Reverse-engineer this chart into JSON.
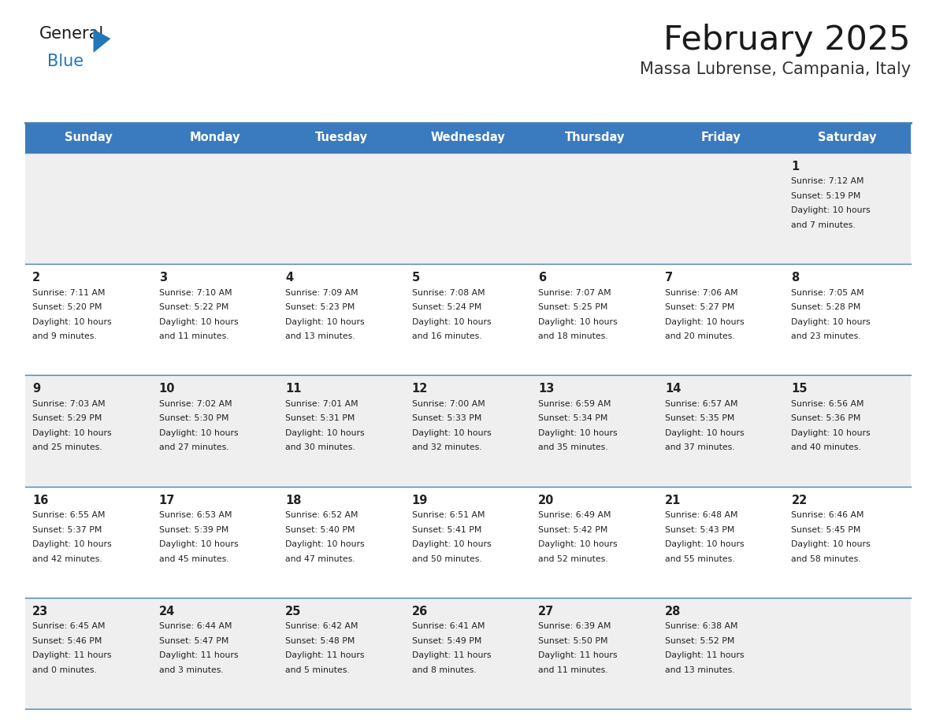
{
  "title": "February 2025",
  "subtitle": "Massa Lubrense, Campania, Italy",
  "header_bg": "#3a7abf",
  "header_text": "#ffffff",
  "days_of_week": [
    "Sunday",
    "Monday",
    "Tuesday",
    "Wednesday",
    "Thursday",
    "Friday",
    "Saturday"
  ],
  "row_bg_light": "#f0f0f0",
  "row_bg_white": "#ffffff",
  "cell_text_color": "#222222",
  "day_number_color": "#222222",
  "border_color": "#4a7fb5",
  "logo_general_color": "#1a1a1a",
  "logo_blue_color": "#2277bb",
  "title_color": "#1a1a1a",
  "subtitle_color": "#333333",
  "calendar_data": [
    [
      null,
      null,
      null,
      null,
      null,
      null,
      {
        "day": 1,
        "lines": [
          "Sunrise: 7:12 AM",
          "Sunset: 5:19 PM",
          "Daylight: 10 hours",
          "and 7 minutes."
        ]
      }
    ],
    [
      {
        "day": 2,
        "lines": [
          "Sunrise: 7:11 AM",
          "Sunset: 5:20 PM",
          "Daylight: 10 hours",
          "and 9 minutes."
        ]
      },
      {
        "day": 3,
        "lines": [
          "Sunrise: 7:10 AM",
          "Sunset: 5:22 PM",
          "Daylight: 10 hours",
          "and 11 minutes."
        ]
      },
      {
        "day": 4,
        "lines": [
          "Sunrise: 7:09 AM",
          "Sunset: 5:23 PM",
          "Daylight: 10 hours",
          "and 13 minutes."
        ]
      },
      {
        "day": 5,
        "lines": [
          "Sunrise: 7:08 AM",
          "Sunset: 5:24 PM",
          "Daylight: 10 hours",
          "and 16 minutes."
        ]
      },
      {
        "day": 6,
        "lines": [
          "Sunrise: 7:07 AM",
          "Sunset: 5:25 PM",
          "Daylight: 10 hours",
          "and 18 minutes."
        ]
      },
      {
        "day": 7,
        "lines": [
          "Sunrise: 7:06 AM",
          "Sunset: 5:27 PM",
          "Daylight: 10 hours",
          "and 20 minutes."
        ]
      },
      {
        "day": 8,
        "lines": [
          "Sunrise: 7:05 AM",
          "Sunset: 5:28 PM",
          "Daylight: 10 hours",
          "and 23 minutes."
        ]
      }
    ],
    [
      {
        "day": 9,
        "lines": [
          "Sunrise: 7:03 AM",
          "Sunset: 5:29 PM",
          "Daylight: 10 hours",
          "and 25 minutes."
        ]
      },
      {
        "day": 10,
        "lines": [
          "Sunrise: 7:02 AM",
          "Sunset: 5:30 PM",
          "Daylight: 10 hours",
          "and 27 minutes."
        ]
      },
      {
        "day": 11,
        "lines": [
          "Sunrise: 7:01 AM",
          "Sunset: 5:31 PM",
          "Daylight: 10 hours",
          "and 30 minutes."
        ]
      },
      {
        "day": 12,
        "lines": [
          "Sunrise: 7:00 AM",
          "Sunset: 5:33 PM",
          "Daylight: 10 hours",
          "and 32 minutes."
        ]
      },
      {
        "day": 13,
        "lines": [
          "Sunrise: 6:59 AM",
          "Sunset: 5:34 PM",
          "Daylight: 10 hours",
          "and 35 minutes."
        ]
      },
      {
        "day": 14,
        "lines": [
          "Sunrise: 6:57 AM",
          "Sunset: 5:35 PM",
          "Daylight: 10 hours",
          "and 37 minutes."
        ]
      },
      {
        "day": 15,
        "lines": [
          "Sunrise: 6:56 AM",
          "Sunset: 5:36 PM",
          "Daylight: 10 hours",
          "and 40 minutes."
        ]
      }
    ],
    [
      {
        "day": 16,
        "lines": [
          "Sunrise: 6:55 AM",
          "Sunset: 5:37 PM",
          "Daylight: 10 hours",
          "and 42 minutes."
        ]
      },
      {
        "day": 17,
        "lines": [
          "Sunrise: 6:53 AM",
          "Sunset: 5:39 PM",
          "Daylight: 10 hours",
          "and 45 minutes."
        ]
      },
      {
        "day": 18,
        "lines": [
          "Sunrise: 6:52 AM",
          "Sunset: 5:40 PM",
          "Daylight: 10 hours",
          "and 47 minutes."
        ]
      },
      {
        "day": 19,
        "lines": [
          "Sunrise: 6:51 AM",
          "Sunset: 5:41 PM",
          "Daylight: 10 hours",
          "and 50 minutes."
        ]
      },
      {
        "day": 20,
        "lines": [
          "Sunrise: 6:49 AM",
          "Sunset: 5:42 PM",
          "Daylight: 10 hours",
          "and 52 minutes."
        ]
      },
      {
        "day": 21,
        "lines": [
          "Sunrise: 6:48 AM",
          "Sunset: 5:43 PM",
          "Daylight: 10 hours",
          "and 55 minutes."
        ]
      },
      {
        "day": 22,
        "lines": [
          "Sunrise: 6:46 AM",
          "Sunset: 5:45 PM",
          "Daylight: 10 hours",
          "and 58 minutes."
        ]
      }
    ],
    [
      {
        "day": 23,
        "lines": [
          "Sunrise: 6:45 AM",
          "Sunset: 5:46 PM",
          "Daylight: 11 hours",
          "and 0 minutes."
        ]
      },
      {
        "day": 24,
        "lines": [
          "Sunrise: 6:44 AM",
          "Sunset: 5:47 PM",
          "Daylight: 11 hours",
          "and 3 minutes."
        ]
      },
      {
        "day": 25,
        "lines": [
          "Sunrise: 6:42 AM",
          "Sunset: 5:48 PM",
          "Daylight: 11 hours",
          "and 5 minutes."
        ]
      },
      {
        "day": 26,
        "lines": [
          "Sunrise: 6:41 AM",
          "Sunset: 5:49 PM",
          "Daylight: 11 hours",
          "and 8 minutes."
        ]
      },
      {
        "day": 27,
        "lines": [
          "Sunrise: 6:39 AM",
          "Sunset: 5:50 PM",
          "Daylight: 11 hours",
          "and 11 minutes."
        ]
      },
      {
        "day": 28,
        "lines": [
          "Sunrise: 6:38 AM",
          "Sunset: 5:52 PM",
          "Daylight: 11 hours",
          "and 13 minutes."
        ]
      },
      null
    ]
  ],
  "row_bg_sequence": [
    "#efefef",
    "#ffffff",
    "#efefef",
    "#ffffff",
    "#efefef"
  ]
}
